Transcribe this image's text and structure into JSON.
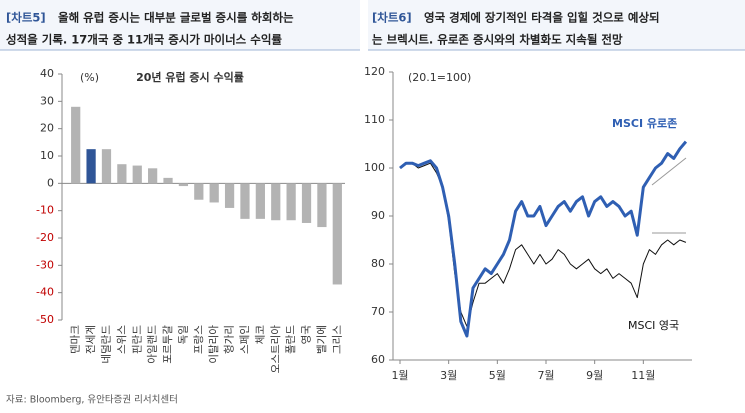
{
  "panel_headers": [
    {
      "label": "[차트5]",
      "lines": [
        "올해 유럽 증시는 대부분 글로벌 증시를 하회하는",
        "성적을 기록. 17개국 중 11개국 증시가 마이너스 수익률"
      ]
    },
    {
      "label": "[차트6]",
      "lines": [
        "영국 경제에 장기적인 타격을 입힐 것으로 예상되",
        "는 브렉시트. 유로존 증시와의 차별화도 지속될 전망"
      ]
    }
  ],
  "source": "자료: Bloomberg, 유안타증권 리서치센터",
  "chart_data": [
    {
      "type": "bar",
      "title": "20년 유럽 증시 수익률",
      "unit": "(%)",
      "categories": [
        "덴마크",
        "전세계",
        "네덜란드",
        "스위스",
        "핀란드",
        "아일랜드",
        "포르투갈",
        "독일",
        "프랑스",
        "이탈리아",
        "헝가리",
        "스페인",
        "체코",
        "오스트리아",
        "폴란드",
        "영국",
        "벨기에",
        "그리스"
      ],
      "values": [
        28,
        12.5,
        12.5,
        7,
        6.5,
        5.5,
        2,
        -1,
        -6,
        -7,
        -9,
        -13,
        -13,
        -13.5,
        -13.5,
        -14.5,
        -16,
        -37
      ],
      "colors": [
        "#b3b3b3",
        "#2f5597",
        "#b3b3b3",
        "#b3b3b3",
        "#b3b3b3",
        "#b3b3b3",
        "#b3b3b3",
        "#b3b3b3",
        "#b3b3b3",
        "#b3b3b3",
        "#b3b3b3",
        "#b3b3b3",
        "#b3b3b3",
        "#b3b3b3",
        "#b3b3b3",
        "#b3b3b3",
        "#b3b3b3",
        "#b3b3b3"
      ],
      "ylim": [
        -50,
        40
      ],
      "yticks": [
        -50,
        -40,
        -30,
        -20,
        -10,
        0,
        10,
        20,
        30,
        40
      ],
      "negative_tick_color": "#c00000",
      "grid": false
    },
    {
      "type": "line",
      "note": "(20.1=100)",
      "x": [
        1,
        1.25,
        1.5,
        1.75,
        2,
        2.25,
        2.5,
        2.75,
        3,
        3.25,
        3.5,
        3.75,
        4,
        4.25,
        4.5,
        4.75,
        5,
        5.25,
        5.5,
        5.75,
        6,
        6.25,
        6.5,
        6.75,
        7,
        7.25,
        7.5,
        7.75,
        8,
        8.25,
        8.5,
        8.75,
        9,
        9.25,
        9.5,
        9.75,
        10,
        10.25,
        10.5,
        10.75,
        11,
        11.25,
        11.5,
        11.75,
        12,
        12.25,
        12.5,
        12.75
      ],
      "series": [
        {
          "name": "MSCI 유로존",
          "color": "#2f5fb3",
          "width": 3,
          "values": [
            100,
            101,
            101,
            100.5,
            101,
            101.5,
            100,
            96,
            90,
            80,
            68,
            65,
            75,
            77,
            79,
            78,
            80,
            82,
            85,
            91,
            93,
            90,
            90,
            92,
            88,
            90,
            92,
            93,
            91,
            93,
            94,
            90,
            93,
            94,
            92,
            93,
            92,
            90,
            91,
            86,
            96,
            98,
            100,
            101,
            103,
            102,
            104,
            105.5
          ]
        },
        {
          "name": "MSCI 영국",
          "color": "#111111",
          "width": 1,
          "values": [
            100,
            101,
            101,
            100,
            100.5,
            101,
            99,
            96,
            89,
            78,
            70,
            67,
            72,
            76,
            76,
            77,
            78,
            76,
            79,
            83,
            84,
            82,
            80,
            82,
            80,
            81,
            83,
            82,
            80,
            79,
            80,
            81,
            79,
            78,
            79,
            77,
            78,
            77,
            76,
            73,
            80,
            83,
            82,
            84,
            85,
            84,
            85,
            84.5
          ]
        }
      ],
      "xlim": [
        1,
        13
      ],
      "xticks": [
        {
          "value": 1,
          "label": "1월"
        },
        {
          "value": 3,
          "label": "3월"
        },
        {
          "value": 5,
          "label": "5월"
        },
        {
          "value": 7,
          "label": "7월"
        },
        {
          "value": 9,
          "label": "9월"
        },
        {
          "value": 11,
          "label": "11월"
        }
      ],
      "ylim": [
        60,
        120
      ],
      "yticks": [
        60,
        70,
        80,
        90,
        100,
        110,
        120
      ],
      "grid": false
    }
  ]
}
